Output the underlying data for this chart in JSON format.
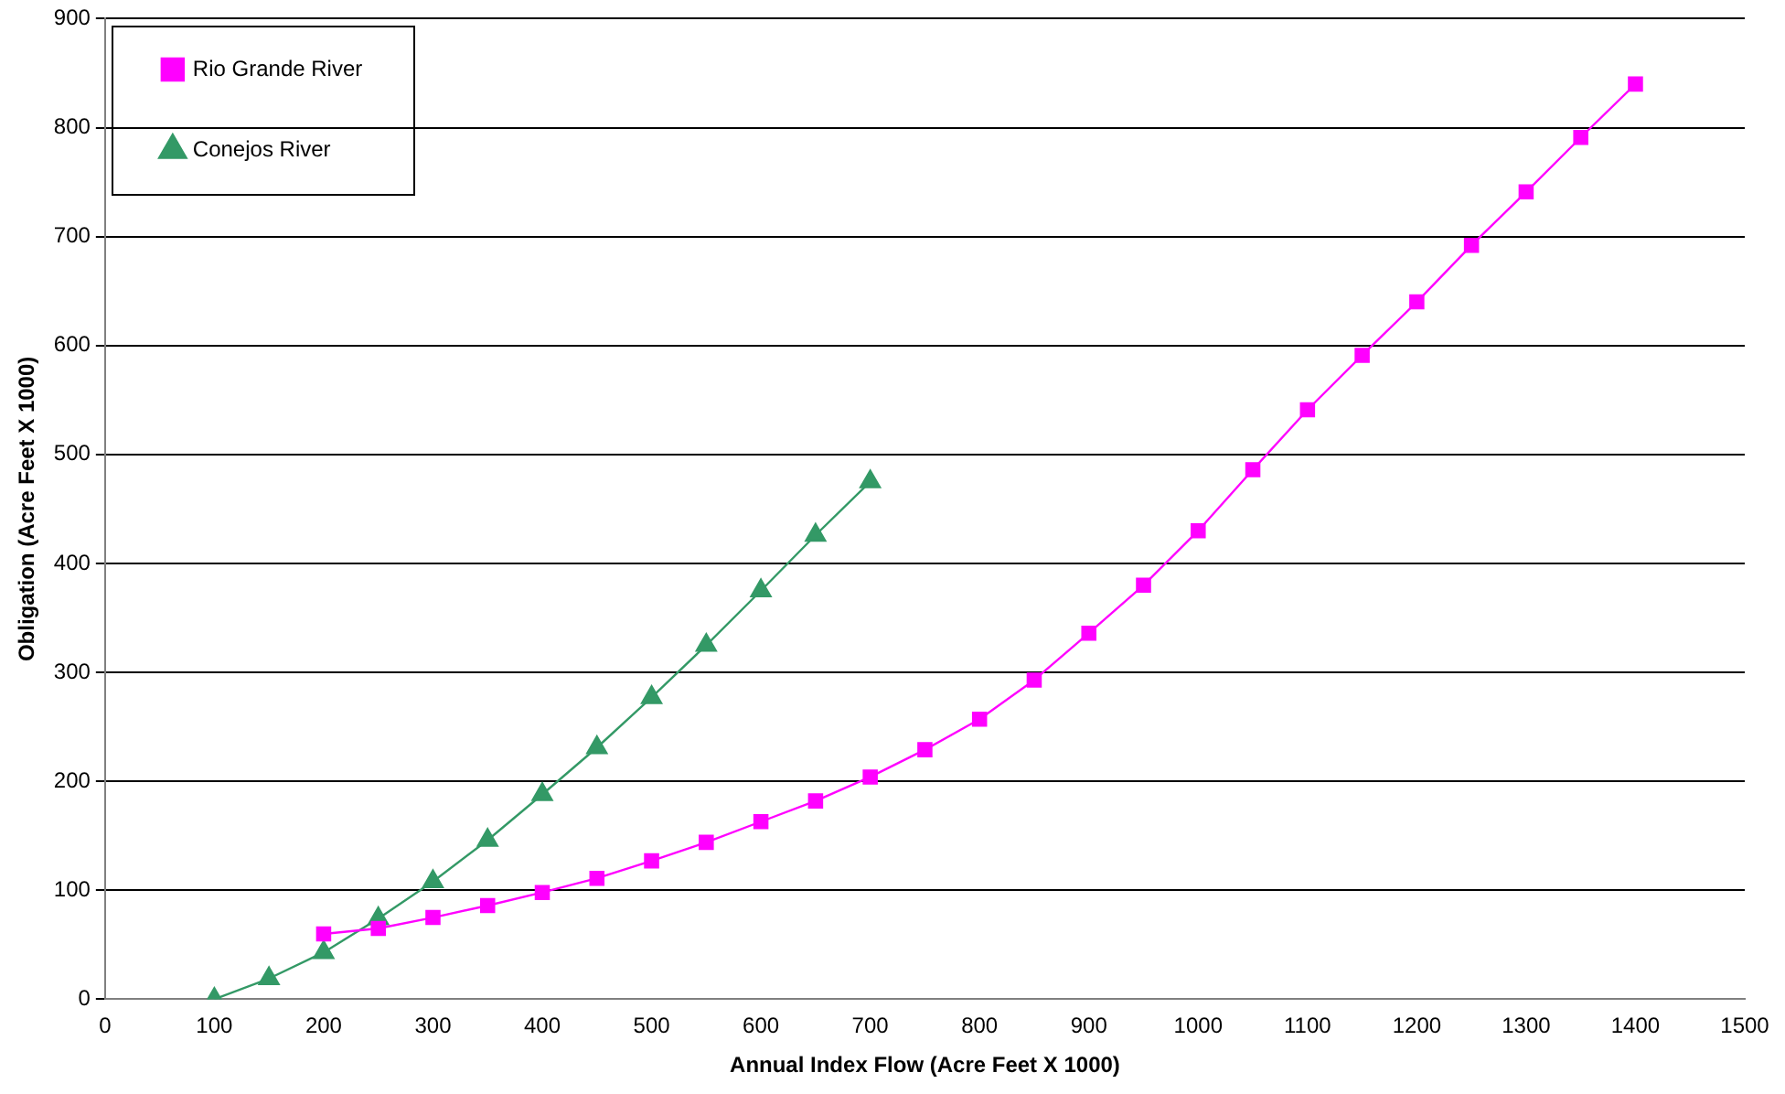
{
  "chart_data": {
    "type": "line",
    "xlabel": "Annual Index Flow (Acre Feet X 1000)",
    "ylabel": "Obligation (Acre Feet X 1000)",
    "xlim": [
      0,
      1500
    ],
    "xticks": [
      0,
      100,
      200,
      300,
      400,
      500,
      600,
      700,
      800,
      900,
      1000,
      1100,
      1200,
      1300,
      1400,
      1500
    ],
    "ylim": [
      0,
      900
    ],
    "yticks": [
      0,
      100,
      200,
      300,
      400,
      500,
      600,
      700,
      800,
      900
    ],
    "grid": "y",
    "legend": "top left",
    "series": [
      {
        "name": "Rio Grande River",
        "color": "#ff00ff",
        "marker": "square",
        "x": [
          200,
          250,
          300,
          350,
          400,
          450,
          500,
          550,
          600,
          650,
          700,
          750,
          800,
          850,
          900,
          950,
          1000,
          1050,
          1100,
          1150,
          1200,
          1250,
          1300,
          1350,
          1400
        ],
        "values": [
          60,
          65,
          75,
          86,
          98,
          111,
          127,
          144,
          163,
          182,
          204,
          229,
          257,
          293,
          336,
          380,
          430,
          486,
          541,
          591,
          640,
          692,
          741,
          791,
          840
        ]
      },
      {
        "name": "Conejos River",
        "color": "#339966",
        "marker": "triangle",
        "x": [
          100,
          150,
          200,
          250,
          300,
          350,
          400,
          450,
          500,
          550,
          600,
          650,
          700
        ],
        "values": [
          0,
          19,
          43,
          74,
          108,
          146,
          188,
          231,
          277,
          325,
          375,
          426,
          475
        ]
      }
    ]
  }
}
